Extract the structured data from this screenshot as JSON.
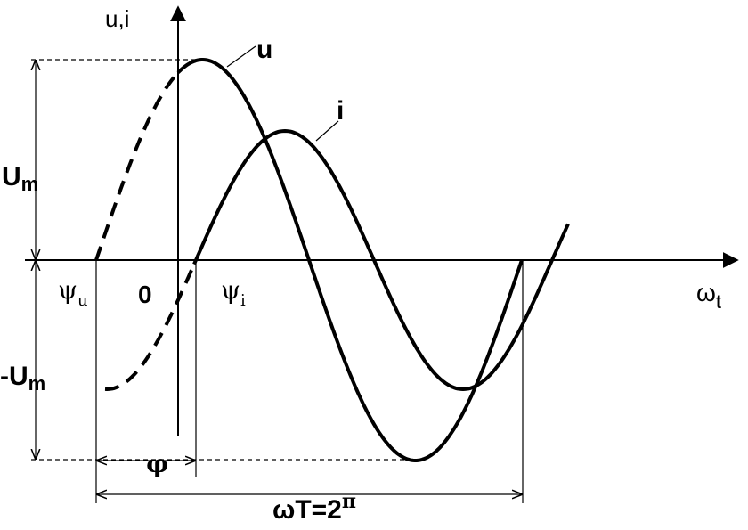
{
  "axes": {
    "y_label": "u,i",
    "x_label": {
      "main": "ω",
      "sub": "t"
    },
    "origin": "0"
  },
  "curves": {
    "voltage": "u",
    "current": "i"
  },
  "levels": {
    "max": {
      "main": "U",
      "sub": "m"
    },
    "min": {
      "main": "-U",
      "sub": "m"
    }
  },
  "phases": {
    "voltage": {
      "main": "ψ",
      "sub": "u"
    },
    "current": {
      "main": "ψ",
      "sub": "i"
    },
    "shift": "φ"
  },
  "period": {
    "main": "ωT=2",
    "sup": "π"
  }
}
